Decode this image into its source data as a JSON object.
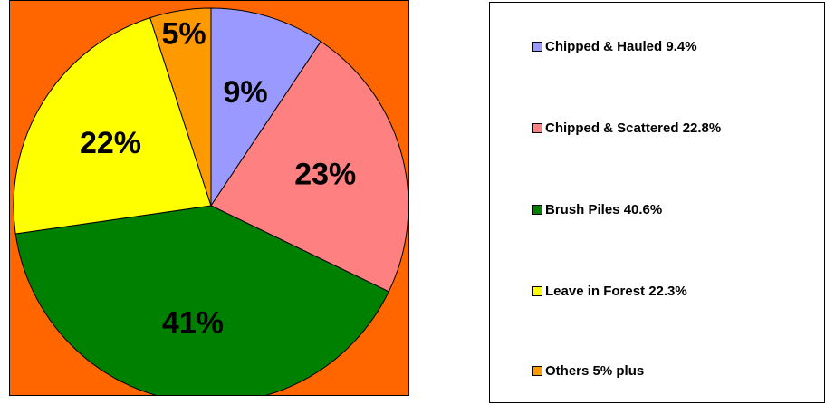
{
  "chart_data": {
    "type": "pie",
    "background_color": "#FF6600",
    "slices": [
      {
        "legend": "Chipped & Hauled 9.4%",
        "value": 9.4,
        "label": "9%",
        "color": "#9999FF"
      },
      {
        "legend": "Chipped & Scattered 22.8%",
        "value": 22.8,
        "label": "23%",
        "color": "#FF8080"
      },
      {
        "legend": "Brush Piles 40.6%",
        "value": 40.6,
        "label": "41%",
        "color": "#008000"
      },
      {
        "legend": "Leave in Forest 22.3%",
        "value": 22.3,
        "label": "22%",
        "color": "#FFFF00"
      },
      {
        "legend": "Others 5% plus",
        "value": 5,
        "label": "5%",
        "color": "#FF9900"
      }
    ],
    "legend_position": "right"
  }
}
